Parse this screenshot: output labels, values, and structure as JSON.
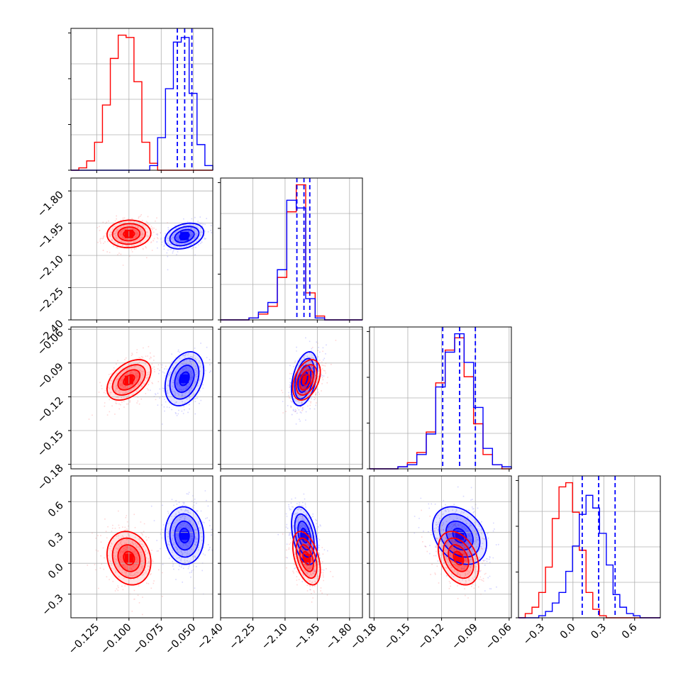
{
  "chart_data": {
    "type": "corner",
    "title": "",
    "grid": true,
    "colors": {
      "series_a": "#ff0000",
      "series_b": "#0000ff",
      "grid": "#b0b0b0",
      "frame": "#000000",
      "quantile_lines": "#0000ff"
    },
    "series": [
      {
        "color": "#ff0000",
        "mean": [
          -0.1,
          -2.0,
          -0.105,
          0.05
        ],
        "sd": [
          0.0085,
          0.032,
          0.009,
          0.13
        ]
      },
      {
        "color": "#0000ff",
        "mean": [
          -0.057,
          -2.01,
          -0.104,
          0.27
        ],
        "sd": [
          0.0075,
          0.03,
          0.012,
          0.14
        ]
      }
    ],
    "parameters": [
      {
        "range": [
          -0.145,
          -0.035
        ],
        "ticks": [
          -0.125,
          -0.1,
          -0.075,
          -0.05
        ],
        "tick_labels": [
          "−0.125",
          "−0.100",
          "−0.075",
          "−0.050"
        ],
        "quantiles": [
          -0.0625,
          -0.0568,
          -0.0512
        ]
      },
      {
        "range": [
          -2.4,
          -1.74
        ],
        "ticks": [
          -2.4,
          -2.25,
          -2.1,
          -1.95,
          -1.8
        ],
        "tick_labels": [
          "−2.40",
          "−2.25",
          "−2.10",
          "−1.95",
          "−1.80"
        ],
        "quantiles": [
          -2.045,
          -2.012,
          -1.985
        ]
      },
      {
        "range": [
          -0.184,
          -0.058
        ],
        "ticks": [
          -0.18,
          -0.15,
          -0.12,
          -0.09,
          -0.06
        ],
        "tick_labels": [
          "−0.18",
          "−0.15",
          "−0.12",
          "−0.09",
          "−0.06"
        ],
        "quantiles": [
          -0.119,
          -0.104,
          -0.09
        ]
      },
      {
        "range": [
          -0.53,
          0.85
        ],
        "ticks": [
          -0.3,
          0.0,
          0.3,
          0.6
        ],
        "tick_labels": [
          "−0.3",
          "0.0",
          "0.3",
          "0.6"
        ],
        "quantiles": [
          0.09,
          0.25,
          0.41
        ]
      }
    ],
    "histograms": [
      {
        "red": [
          0,
          1,
          4,
          12,
          28,
          48,
          58,
          57,
          38,
          12,
          3,
          0,
          0,
          0,
          0,
          0,
          0,
          0
        ],
        "blue": [
          0,
          0,
          0,
          0,
          0,
          0,
          0,
          0,
          0,
          0,
          2,
          14,
          35,
          55,
          57,
          33,
          11,
          2
        ]
      },
      {
        "red": [
          0,
          0,
          0,
          1,
          3,
          7,
          22,
          56,
          70,
          14,
          2,
          0,
          0,
          0,
          0
        ],
        "blue": [
          0,
          0,
          0,
          1,
          4,
          9,
          26,
          62,
          58,
          11,
          1,
          0,
          0,
          0,
          0
        ]
      },
      {
        "red": [
          0,
          0,
          0,
          1,
          3,
          8,
          18,
          42,
          58,
          64,
          45,
          22,
          7,
          2,
          0
        ],
        "blue": [
          0,
          0,
          0,
          1,
          2,
          7,
          17,
          40,
          57,
          66,
          52,
          30,
          10,
          2,
          1
        ]
      },
      {
        "red": [
          0,
          2,
          5,
          12,
          24,
          47,
          62,
          64,
          50,
          32,
          12,
          4,
          1,
          0,
          0,
          0,
          0,
          0,
          0,
          0,
          0
        ],
        "blue": [
          0,
          0,
          0,
          1,
          3,
          7,
          12,
          22,
          34,
          49,
          58,
          52,
          40,
          25,
          11,
          5,
          2,
          1,
          0,
          0,
          0
        ]
      }
    ],
    "correlations": {
      "red": {
        "0-1": 0.05,
        "0-2": 0.45,
        "0-3": -0.15,
        "1-2": 0.4,
        "1-3": -0.45,
        "2-3": -0.35
      },
      "blue": {
        "0-1": 0.3,
        "0-2": 0.3,
        "0-3": -0.05,
        "1-2": 0.4,
        "1-3": -0.4,
        "2-3": -0.3
      }
    },
    "contour_levels_sigma": [
      0.5,
      1.0,
      1.5,
      2.0
    ]
  }
}
